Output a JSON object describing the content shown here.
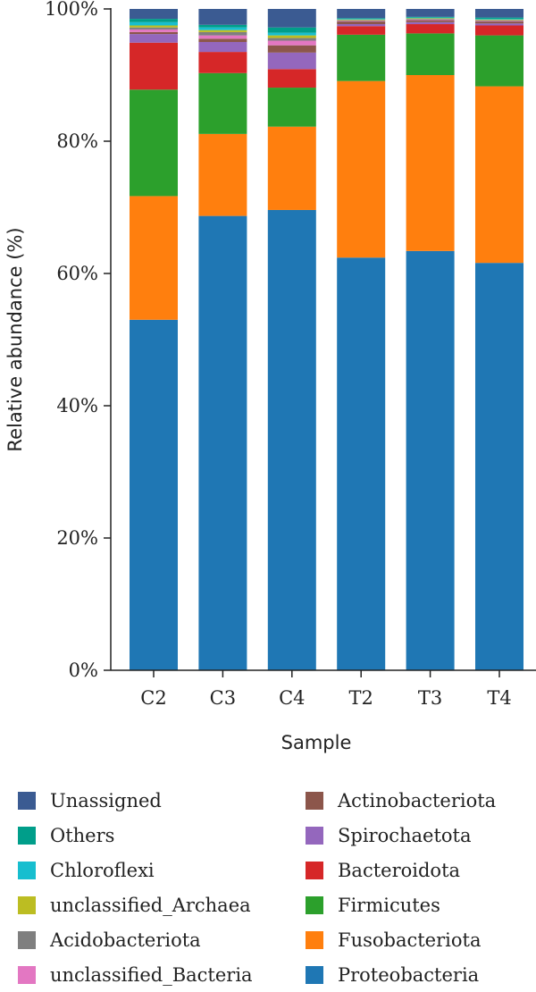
{
  "chart_data": {
    "type": "bar",
    "stacked": true,
    "xlabel": "Sample",
    "ylabel": "Relative abundance (%)",
    "ylim": [
      0,
      100
    ],
    "ytick_labels": [
      "0%",
      "20%",
      "40%",
      "60%",
      "80%",
      "100%"
    ],
    "categories": [
      "C2",
      "C3",
      "C4",
      "T2",
      "T3",
      "T4"
    ],
    "series": [
      {
        "name": "Proteobacteria",
        "color": "#1f77b4",
        "values": [
          53.0,
          68.7,
          69.6,
          62.4,
          63.4,
          61.6
        ]
      },
      {
        "name": "Fusobacteriota",
        "color": "#ff7f0e",
        "values": [
          18.7,
          12.4,
          12.6,
          26.7,
          26.6,
          26.7
        ]
      },
      {
        "name": "Firmicutes",
        "color": "#2ca02c",
        "values": [
          16.1,
          9.2,
          5.9,
          7.0,
          6.3,
          7.7
        ]
      },
      {
        "name": "Bacteroidota",
        "color": "#d62728",
        "values": [
          7.1,
          3.2,
          2.8,
          1.3,
          1.4,
          1.5
        ]
      },
      {
        "name": "Spirochaetota",
        "color": "#9467bd",
        "values": [
          1.3,
          1.5,
          2.5,
          0.3,
          0.3,
          0.3
        ]
      },
      {
        "name": "Actinobacteriota",
        "color": "#8c564b",
        "values": [
          0.3,
          0.5,
          1.1,
          0.4,
          0.3,
          0.3
        ]
      },
      {
        "name": "unclassified_Bacteria",
        "color": "#e377c2",
        "values": [
          0.4,
          0.5,
          0.7,
          0.1,
          0.1,
          0.1
        ]
      },
      {
        "name": "Acidobacteriota",
        "color": "#7f7f7f",
        "values": [
          0.3,
          0.5,
          0.4,
          0.1,
          0.1,
          0.1
        ]
      },
      {
        "name": "unclassified_Archaea",
        "color": "#bcbd22",
        "values": [
          0.3,
          0.3,
          0.4,
          0.1,
          0.1,
          0.1
        ]
      },
      {
        "name": "Chloroflexi",
        "color": "#17becf",
        "values": [
          0.5,
          0.4,
          0.4,
          0.1,
          0.1,
          0.1
        ]
      },
      {
        "name": "Others",
        "color": "#009e8a",
        "values": [
          0.5,
          0.4,
          0.8,
          0.1,
          0.1,
          0.2
        ]
      },
      {
        "name": "Unassigned",
        "color": "#3b5b92",
        "values": [
          1.5,
          2.4,
          2.8,
          1.4,
          1.2,
          1.3
        ]
      }
    ],
    "legend": {
      "placement": "bottom",
      "columns": [
        [
          "Unassigned",
          "Others",
          "Chloroflexi",
          "unclassified_Archaea",
          "Acidobacteriota",
          "unclassified_Bacteria"
        ],
        [
          "Actinobacteriota",
          "Spirochaetota",
          "Bacteroidota",
          "Firmicutes",
          "Fusobacteriota",
          "Proteobacteria"
        ]
      ]
    },
    "grid": false
  }
}
